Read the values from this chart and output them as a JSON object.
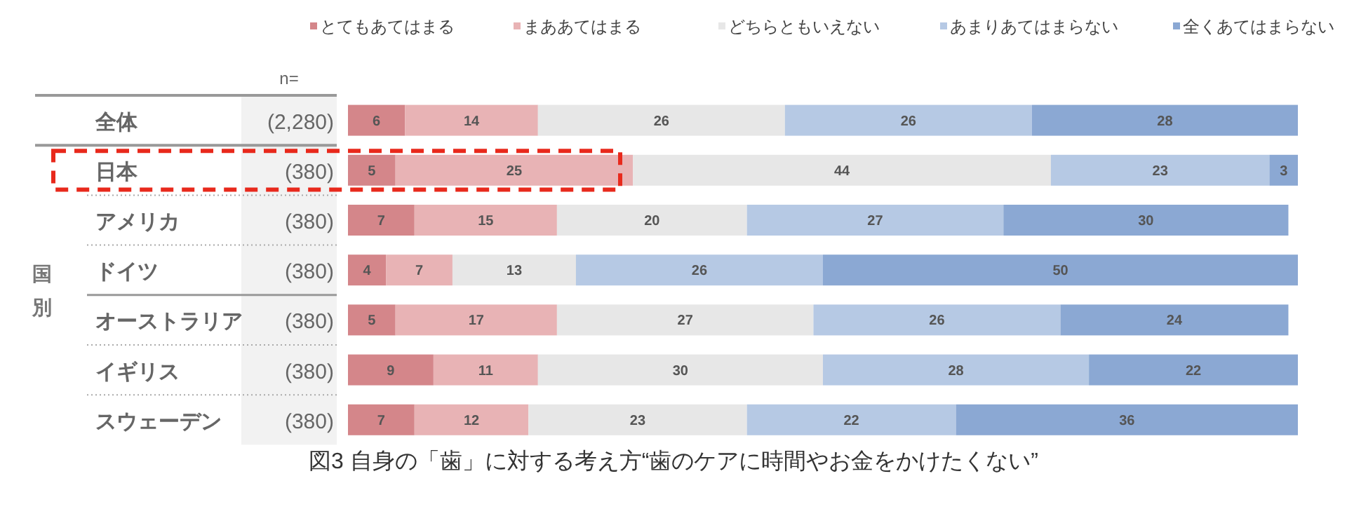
{
  "chart_data": {
    "type": "bar",
    "orientation": "horizontal",
    "stacked": true,
    "data_labels": true,
    "legend": "top",
    "title": "図3 自身の「歯」に対する考え方“歯のケアに時間やお金をかけたくない”",
    "categories": [
      "全体",
      "日本",
      "アメリカ",
      "ドイツ",
      "オーストラリア",
      "イギリス",
      "スウェーデン"
    ],
    "y2_categories": [
      "(2,280)",
      "(380)",
      "(380)",
      "(380)",
      "(380)",
      "(380)",
      "(380)"
    ],
    "annotations": [
      "n=",
      "国別"
    ],
    "series": [
      {
        "name": "とてもあてはまる",
        "color": "#d4868a",
        "values": [
          6,
          5,
          7,
          4,
          5,
          9,
          7
        ]
      },
      {
        "name": "まああてはまる",
        "color": "#e8b3b5",
        "values": [
          14,
          25,
          15,
          7,
          17,
          11,
          12
        ]
      },
      {
        "name": "どちらともいえない",
        "color": "#e7e7e7",
        "values": [
          26,
          44,
          20,
          13,
          27,
          30,
          23
        ]
      },
      {
        "name": "あまりあてはまらない",
        "color": "#b6c9e4",
        "values": [
          26,
          23,
          27,
          26,
          26,
          28,
          22
        ]
      },
      {
        "name": "全くあてはまらない",
        "color": "#8ba8d3",
        "values": [
          28,
          3,
          30,
          50,
          24,
          22,
          36
        ]
      }
    ]
  }
}
